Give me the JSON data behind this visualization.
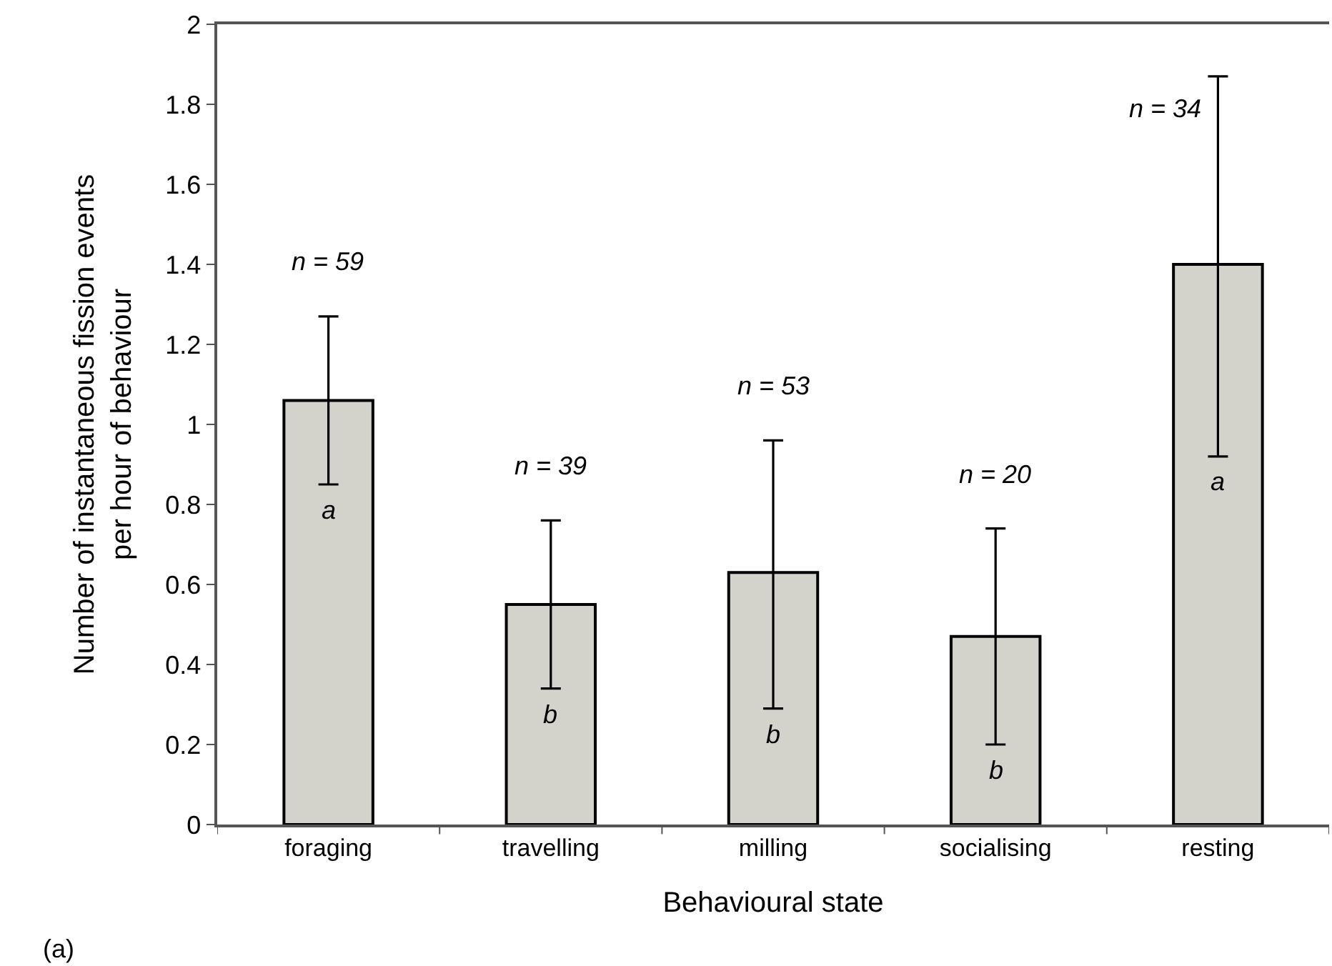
{
  "chart_data": {
    "type": "bar",
    "xlabel": "Behavioural state",
    "ylabel": "Number of instantaneous fission events\nper hour of behaviour",
    "categories": [
      "foraging",
      "travelling",
      "milling",
      "socialising",
      "resting"
    ],
    "values": [
      1.06,
      0.55,
      0.63,
      0.47,
      1.4
    ],
    "errors": [
      [
        0.85,
        1.27
      ],
      [
        0.34,
        0.76
      ],
      [
        0.29,
        0.96
      ],
      [
        0.2,
        0.74
      ],
      [
        0.92,
        1.87
      ]
    ],
    "color": "#d3d3cb",
    "ylim": [
      0,
      2
    ],
    "yticks": [
      0,
      0.2,
      0.4,
      0.6,
      0.8,
      1,
      1.2,
      1.4,
      1.6,
      1.8,
      2
    ],
    "legend": false,
    "annotations": [
      "n = 59",
      "n = 39",
      "n = 53",
      "n = 20",
      "n = 34",
      "a",
      "b",
      "b",
      "b",
      "a",
      "(a)"
    ]
  }
}
